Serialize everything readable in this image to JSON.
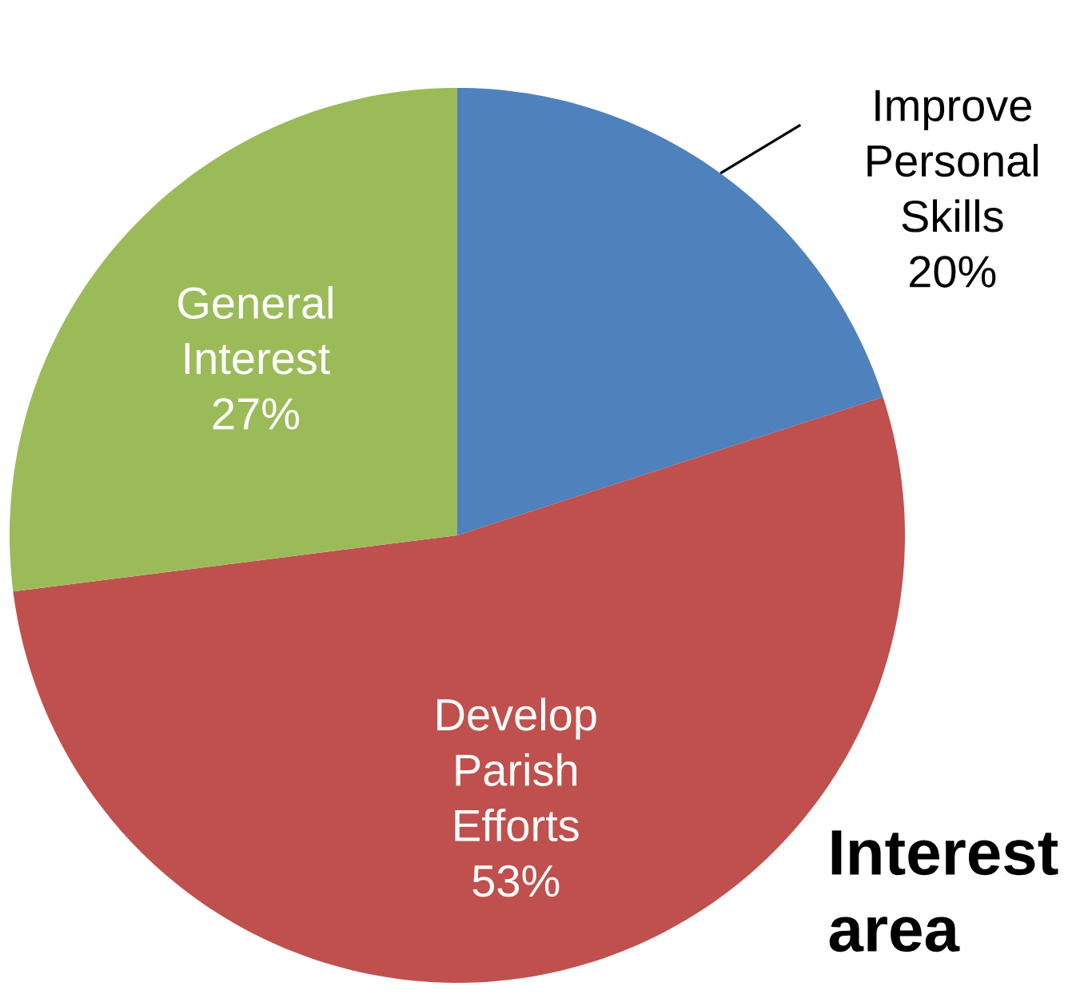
{
  "chart_data": {
    "type": "pie",
    "title": "Interest area",
    "categories": [
      "Improve Personal Skills",
      "Develop Parish Efforts",
      "General Interest"
    ],
    "values": [
      20,
      53,
      27
    ],
    "colors": [
      "#4f81bd",
      "#c0504d",
      "#9bbb59"
    ],
    "value_labels": [
      "20%",
      "53%",
      "27%"
    ]
  }
}
